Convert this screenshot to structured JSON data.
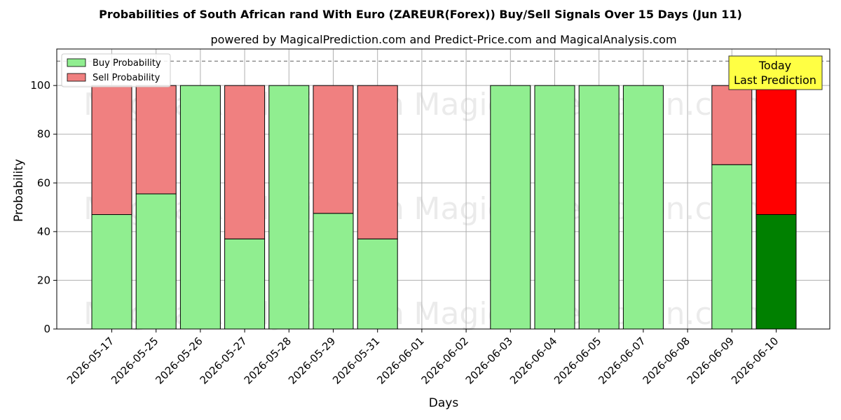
{
  "chart_data": {
    "type": "bar",
    "title": "Probabilities of South African rand With Euro (ZAREUR(Forex)) Buy/Sell Signals Over 15 Days (Jun 11)",
    "subtitle": "powered by MagicalPrediction.com and Predict-Price.com and MagicalAnalysis.com",
    "xlabel": "Days",
    "ylabel": "Probability",
    "ylim": [
      0,
      115
    ],
    "yticks": [
      0,
      20,
      40,
      60,
      80,
      100
    ],
    "grid": true,
    "stacked": true,
    "legend_position": "top-left",
    "threshold_line": 110,
    "categories": [
      "2026-05-17",
      "2026-05-25",
      "2026-05-26",
      "2026-05-27",
      "2026-05-28",
      "2026-05-29",
      "2026-05-31",
      "2026-06-01",
      "2026-06-02",
      "2026-06-03",
      "2026-06-04",
      "2026-06-05",
      "2026-06-07",
      "2026-06-08",
      "2026-06-09",
      "2026-06-10"
    ],
    "series": [
      {
        "name": "Buy Probability",
        "color": "#90ee90",
        "values": [
          47,
          55.5,
          100,
          37,
          100,
          47.5,
          37,
          null,
          null,
          100,
          100,
          100,
          100,
          null,
          67.5,
          47
        ]
      },
      {
        "name": "Sell Probability",
        "color": "#f08080",
        "values": [
          53,
          44.5,
          0,
          63,
          0,
          52.5,
          63,
          null,
          null,
          0,
          0,
          0,
          0,
          null,
          32.5,
          53
        ]
      }
    ],
    "highlight": {
      "category": "2026-06-10",
      "buy_color": "#008000",
      "sell_color": "#ff0000"
    },
    "annotation": {
      "line1": "Today",
      "line2": "Last Prediction",
      "bg": "#ffff44"
    },
    "watermarks": [
      "MagicalAnalysis.com",
      "MagicalPrediction.com"
    ]
  }
}
